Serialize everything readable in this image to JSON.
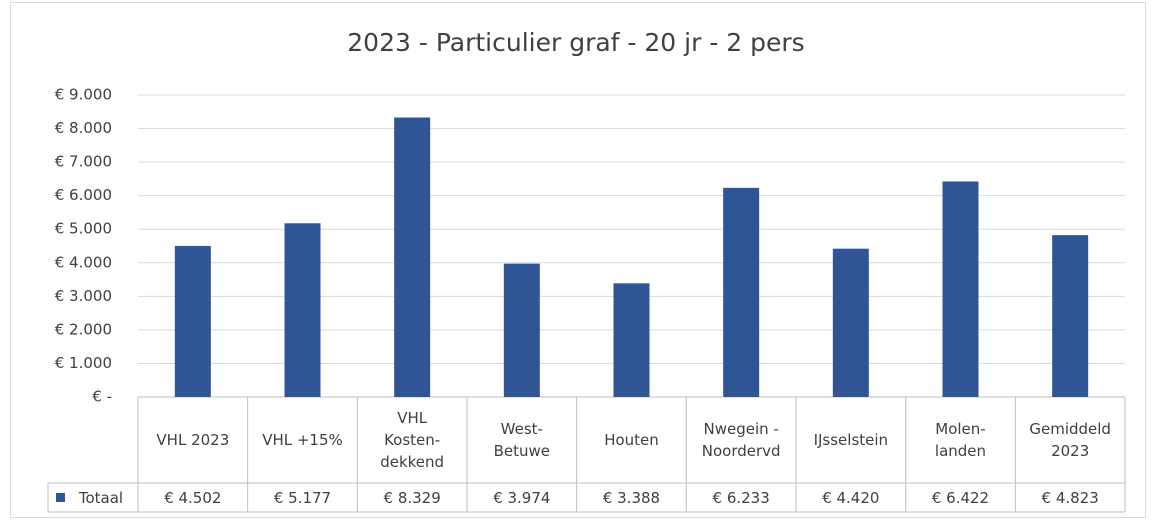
{
  "chart_data": {
    "type": "bar",
    "title": "2023 - Particulier graf - 20 jr - 2 pers",
    "categories": [
      "VHL 2023",
      "VHL +15%",
      "VHL\nKosten-\ndekkend",
      "West-\nBetuwe",
      "Houten",
      "Nwegein -\nNoordervd",
      "IJsselstein",
      "Molen-\nlanden",
      "Gemiddeld\n2023"
    ],
    "series": [
      {
        "name": "Totaal",
        "color": "#2f5597",
        "values": [
          4502,
          5177,
          8329,
          3974,
          3388,
          6233,
          4420,
          6422,
          4823
        ],
        "value_labels": [
          "€ 4.502",
          "€ 5.177",
          "€ 8.329",
          "€ 3.974",
          "€ 3.388",
          "€ 6.233",
          "€ 4.420",
          "€ 6.422",
          "€ 4.823"
        ]
      }
    ],
    "ylim": [
      0,
      9000
    ],
    "yticks": [
      {
        "value": 0,
        "label": "€ -"
      },
      {
        "value": 1000,
        "label": "€ 1.000"
      },
      {
        "value": 2000,
        "label": "€ 2.000"
      },
      {
        "value": 3000,
        "label": "€ 3.000"
      },
      {
        "value": 4000,
        "label": "€ 4.000"
      },
      {
        "value": 5000,
        "label": "€ 5.000"
      },
      {
        "value": 6000,
        "label": "€ 6.000"
      },
      {
        "value": 7000,
        "label": "€ 7.000"
      },
      {
        "value": 8000,
        "label": "€ 8.000"
      },
      {
        "value": 9000,
        "label": "€ 9.000"
      }
    ],
    "grid": true
  }
}
